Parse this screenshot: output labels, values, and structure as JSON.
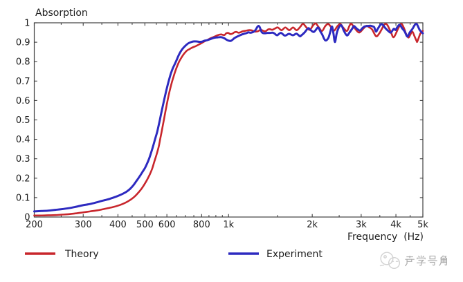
{
  "chart_data": {
    "type": "line",
    "title": "Absorption",
    "xlabel": "Frequency  (Hz)",
    "ylabel": "Absorption",
    "x_scale": "log",
    "xlim": [
      200,
      5000
    ],
    "ylim": [
      0,
      1
    ],
    "grid": false,
    "legend_position": "bottom",
    "x_ticks": [
      {
        "value": 200,
        "label": "200"
      },
      {
        "value": 300,
        "label": "300"
      },
      {
        "value": 400,
        "label": "400"
      },
      {
        "value": 500,
        "label": "500"
      },
      {
        "value": 600,
        "label": "600"
      },
      {
        "value": 800,
        "label": "800"
      },
      {
        "value": 1000,
        "label": "1k"
      },
      {
        "value": 2000,
        "label": "2k"
      },
      {
        "value": 3000,
        "label": "3k"
      },
      {
        "value": 4000,
        "label": "4k"
      },
      {
        "value": 5000,
        "label": "5k"
      }
    ],
    "x_minor_ticks": [
      250,
      350,
      450,
      550,
      650,
      700,
      750,
      850,
      900,
      950,
      1500,
      2500,
      3500,
      4500
    ],
    "y_ticks": [
      {
        "value": 0,
        "label": "0"
      },
      {
        "value": 0.1,
        "label": "0.1"
      },
      {
        "value": 0.2,
        "label": "0.2"
      },
      {
        "value": 0.3,
        "label": "0.3"
      },
      {
        "value": 0.4,
        "label": "0.4"
      },
      {
        "value": 0.5,
        "label": "0.5"
      },
      {
        "value": 0.6,
        "label": "0.6"
      },
      {
        "value": 0.7,
        "label": "0.7"
      },
      {
        "value": 0.8,
        "label": "0.8"
      },
      {
        "value": 0.9,
        "label": "0.9"
      },
      {
        "value": 1,
        "label": "1"
      }
    ],
    "series": [
      {
        "name": "Theory",
        "color": "#c8262c",
        "x_unit": "Hz",
        "points": [
          [
            200.0,
            0.008
          ],
          [
            212.4,
            0.008
          ],
          [
            224.9,
            0.009
          ],
          [
            238.2,
            0.01
          ],
          [
            249.4,
            0.012
          ],
          [
            267.2,
            0.015
          ],
          [
            282.9,
            0.019
          ],
          [
            299.6,
            0.024
          ],
          [
            317.3,
            0.029
          ],
          [
            336.0,
            0.034
          ],
          [
            347.8,
            0.038
          ],
          [
            366.2,
            0.045
          ],
          [
            383.4,
            0.051
          ],
          [
            399.1,
            0.058
          ],
          [
            415.4,
            0.067
          ],
          [
            429.9,
            0.077
          ],
          [
            445.0,
            0.09
          ],
          [
            460.5,
            0.107
          ],
          [
            475.3,
            0.128
          ],
          [
            487.7,
            0.148
          ],
          [
            499.0,
            0.17
          ],
          [
            510.6,
            0.195
          ],
          [
            521.0,
            0.22
          ],
          [
            531.5,
            0.25
          ],
          [
            540.7,
            0.285
          ],
          [
            551.7,
            0.325
          ],
          [
            561.3,
            0.365
          ],
          [
            567.7,
            0.402
          ],
          [
            574.3,
            0.438
          ],
          [
            580.2,
            0.472
          ],
          [
            586.6,
            0.508
          ],
          [
            592.7,
            0.543
          ],
          [
            598.8,
            0.576
          ],
          [
            605.0,
            0.608
          ],
          [
            611.3,
            0.638
          ],
          [
            618.0,
            0.666
          ],
          [
            624.8,
            0.692
          ],
          [
            632.0,
            0.716
          ],
          [
            639.6,
            0.74
          ],
          [
            647.4,
            0.762
          ],
          [
            655.6,
            0.782
          ],
          [
            663.9,
            0.8
          ],
          [
            675.0,
            0.818
          ],
          [
            686.8,
            0.835
          ],
          [
            698.3,
            0.848
          ],
          [
            710.0,
            0.858
          ],
          [
            722.3,
            0.864
          ],
          [
            734.4,
            0.87
          ],
          [
            747.1,
            0.875
          ],
          [
            759.7,
            0.879
          ],
          [
            776.8,
            0.886
          ],
          [
            793.5,
            0.893
          ],
          [
            816.1,
            0.903
          ],
          [
            839.3,
            0.912
          ],
          [
            863.3,
            0.921
          ],
          [
            887.9,
            0.928
          ],
          [
            913.1,
            0.936
          ],
          [
            939.2,
            0.94
          ],
          [
            965.9,
            0.937
          ],
          [
            981.0,
            0.946
          ],
          [
            997.4,
            0.948
          ],
          [
            1014,
            0.942
          ],
          [
            1032,
            0.944
          ],
          [
            1049,
            0.951
          ],
          [
            1067,
            0.953
          ],
          [
            1085,
            0.949
          ],
          [
            1104,
            0.951
          ],
          [
            1122,
            0.956
          ],
          [
            1141,
            0.958
          ],
          [
            1161,
            0.96
          ],
          [
            1181,
            0.962
          ],
          [
            1199,
            0.962
          ],
          [
            1219,
            0.96
          ],
          [
            1239,
            0.955
          ],
          [
            1260,
            0.955
          ],
          [
            1282,
            0.958
          ],
          [
            1301,
            0.964
          ],
          [
            1319,
            0.962
          ],
          [
            1342,
            0.957
          ],
          [
            1364,
            0.958
          ],
          [
            1388,
            0.966
          ],
          [
            1411,
            0.967
          ],
          [
            1435,
            0.964
          ],
          [
            1466,
            0.97
          ],
          [
            1504,
            0.976
          ],
          [
            1551,
            0.962
          ],
          [
            1600,
            0.976
          ],
          [
            1654,
            0.962
          ],
          [
            1706,
            0.976
          ],
          [
            1759,
            0.962
          ],
          [
            1813,
            0.98
          ],
          [
            1854,
            0.995
          ],
          [
            1909,
            0.975
          ],
          [
            1961,
            0.964
          ],
          [
            2010,
            0.985
          ],
          [
            2057,
            0.997
          ],
          [
            2116,
            0.975
          ],
          [
            2170,
            0.958
          ],
          [
            2228,
            0.983
          ],
          [
            2284,
            0.994
          ],
          [
            2346,
            0.975
          ],
          [
            2399,
            0.96
          ],
          [
            2456,
            0.98
          ],
          [
            2522,
            0.994
          ],
          [
            2586,
            0.975
          ],
          [
            2666,
            0.958
          ],
          [
            2723,
            0.985
          ],
          [
            2766,
            0.995
          ],
          [
            2851,
            0.97
          ],
          [
            2951,
            0.95
          ],
          [
            3054,
            0.97
          ],
          [
            3139,
            0.985
          ],
          [
            3197,
            0.978
          ],
          [
            3283,
            0.966
          ],
          [
            3392,
            0.931
          ],
          [
            3484,
            0.945
          ],
          [
            3565,
            0.97
          ],
          [
            3637,
            0.992
          ],
          [
            3720,
            0.99
          ],
          [
            3837,
            0.952
          ],
          [
            3930,
            0.926
          ],
          [
            4082,
            0.973
          ],
          [
            4184,
            0.995
          ],
          [
            4283,
            0.97
          ],
          [
            4345,
            0.945
          ],
          [
            4433,
            0.924
          ],
          [
            4510,
            0.94
          ],
          [
            4583,
            0.955
          ],
          [
            4662,
            0.932
          ],
          [
            4749,
            0.906
          ],
          [
            4779,
            0.905
          ],
          [
            4898,
            0.945
          ],
          [
            4971,
            0.956
          ],
          [
            5000,
            0.958
          ]
        ]
      },
      {
        "name": "Experiment",
        "color": "#2d2ac0",
        "x_unit": "Hz",
        "points": [
          [
            200.0,
            0.029
          ],
          [
            212.4,
            0.031
          ],
          [
            224.9,
            0.033
          ],
          [
            238.2,
            0.037
          ],
          [
            249.4,
            0.04
          ],
          [
            267.2,
            0.046
          ],
          [
            282.9,
            0.053
          ],
          [
            299.6,
            0.061
          ],
          [
            317.3,
            0.067
          ],
          [
            336.0,
            0.076
          ],
          [
            347.8,
            0.082
          ],
          [
            366.2,
            0.09
          ],
          [
            383.4,
            0.099
          ],
          [
            399.1,
            0.108
          ],
          [
            415.4,
            0.119
          ],
          [
            429.9,
            0.131
          ],
          [
            442.4,
            0.145
          ],
          [
            453.7,
            0.162
          ],
          [
            464.3,
            0.182
          ],
          [
            473.9,
            0.2
          ],
          [
            482.2,
            0.216
          ],
          [
            490.5,
            0.233
          ],
          [
            500.2,
            0.252
          ],
          [
            509.1,
            0.275
          ],
          [
            517.7,
            0.3
          ],
          [
            526.1,
            0.33
          ],
          [
            535.5,
            0.366
          ],
          [
            543.8,
            0.4
          ],
          [
            553.3,
            0.437
          ],
          [
            559.7,
            0.468
          ],
          [
            566.1,
            0.5
          ],
          [
            572.6,
            0.535
          ],
          [
            579.2,
            0.568
          ],
          [
            585.9,
            0.6
          ],
          [
            592.7,
            0.632
          ],
          [
            599.5,
            0.662
          ],
          [
            606.4,
            0.69
          ],
          [
            613.4,
            0.716
          ],
          [
            620.5,
            0.74
          ],
          [
            630.2,
            0.766
          ],
          [
            641.8,
            0.79
          ],
          [
            651.1,
            0.81
          ],
          [
            660.1,
            0.83
          ],
          [
            671.2,
            0.85
          ],
          [
            682.8,
            0.866
          ],
          [
            698.3,
            0.881
          ],
          [
            714.1,
            0.893
          ],
          [
            730.6,
            0.9
          ],
          [
            747.1,
            0.904
          ],
          [
            768.4,
            0.904
          ],
          [
            784.9,
            0.902
          ],
          [
            803.1,
            0.903
          ],
          [
            816.1,
            0.907
          ],
          [
            839.3,
            0.911
          ],
          [
            863.3,
            0.917
          ],
          [
            887.9,
            0.923
          ],
          [
            913.1,
            0.925
          ],
          [
            939.2,
            0.926
          ],
          [
            964.3,
            0.921
          ],
          [
            981.0,
            0.914
          ],
          [
            1001,
            0.908
          ],
          [
            1019,
            0.907
          ],
          [
            1036,
            0.914
          ],
          [
            1049,
            0.921
          ],
          [
            1067,
            0.927
          ],
          [
            1085,
            0.932
          ],
          [
            1104,
            0.937
          ],
          [
            1122,
            0.941
          ],
          [
            1141,
            0.944
          ],
          [
            1161,
            0.947
          ],
          [
            1178,
            0.951
          ],
          [
            1199,
            0.949
          ],
          [
            1219,
            0.951
          ],
          [
            1239,
            0.957
          ],
          [
            1254,
            0.966
          ],
          [
            1268,
            0.978
          ],
          [
            1282,
            0.984
          ],
          [
            1293,
            0.979
          ],
          [
            1304,
            0.966
          ],
          [
            1315,
            0.953
          ],
          [
            1326,
            0.948
          ],
          [
            1349,
            0.946
          ],
          [
            1380,
            0.948
          ],
          [
            1411,
            0.948
          ],
          [
            1443,
            0.949
          ],
          [
            1466,
            0.944
          ],
          [
            1495,
            0.936
          ],
          [
            1542,
            0.948
          ],
          [
            1595,
            0.934
          ],
          [
            1649,
            0.943
          ],
          [
            1706,
            0.936
          ],
          [
            1754,
            0.944
          ],
          [
            1804,
            0.931
          ],
          [
            1823,
            0.934
          ],
          [
            1876,
            0.95
          ],
          [
            1934,
            0.972
          ],
          [
            1975,
            0.962
          ],
          [
            2022,
            0.953
          ],
          [
            2056,
            0.962
          ],
          [
            2098,
            0.976
          ],
          [
            2140,
            0.955
          ],
          [
            2170,
            0.941
          ],
          [
            2226,
            0.91
          ],
          [
            2282,
            0.92
          ],
          [
            2319,
            0.95
          ],
          [
            2355,
            0.981
          ],
          [
            2384,
            0.945
          ],
          [
            2414,
            0.901
          ],
          [
            2449,
            0.945
          ],
          [
            2492,
            0.975
          ],
          [
            2545,
            0.987
          ],
          [
            2601,
            0.958
          ],
          [
            2666,
            0.935
          ],
          [
            2723,
            0.95
          ],
          [
            2791,
            0.972
          ],
          [
            2827,
            0.983
          ],
          [
            2892,
            0.97
          ],
          [
            2969,
            0.96
          ],
          [
            3019,
            0.97
          ],
          [
            3082,
            0.981
          ],
          [
            3161,
            0.983
          ],
          [
            3238,
            0.985
          ],
          [
            3290,
            0.982
          ],
          [
            3340,
            0.978
          ],
          [
            3390,
            0.955
          ],
          [
            3445,
            0.97
          ],
          [
            3525,
            0.991
          ],
          [
            3586,
            0.99
          ],
          [
            3669,
            0.972
          ],
          [
            3767,
            0.956
          ],
          [
            3837,
            0.95
          ],
          [
            3930,
            0.969
          ],
          [
            3987,
            0.963
          ],
          [
            4044,
            0.977
          ],
          [
            4126,
            0.99
          ],
          [
            4210,
            0.972
          ],
          [
            4303,
            0.955
          ],
          [
            4395,
            0.929
          ],
          [
            4484,
            0.95
          ],
          [
            4593,
            0.97
          ],
          [
            4681,
            0.99
          ],
          [
            4757,
            0.993
          ],
          [
            4867,
            0.964
          ],
          [
            4971,
            0.949
          ],
          [
            5000,
            0.946
          ]
        ]
      }
    ]
  },
  "legend": {
    "items": [
      {
        "label": "Theory",
        "color": "#c8262c"
      },
      {
        "label": "Experiment",
        "color": "#2d2ac0"
      }
    ]
  },
  "watermark": {
    "text": "声学号角"
  },
  "colors": {
    "theory": "#c8262c",
    "experiment": "#2d2ac0",
    "axis": "#3f3f3f",
    "text": "#1d1d1d",
    "watermark": "#adadad",
    "background": "#ffffff"
  }
}
